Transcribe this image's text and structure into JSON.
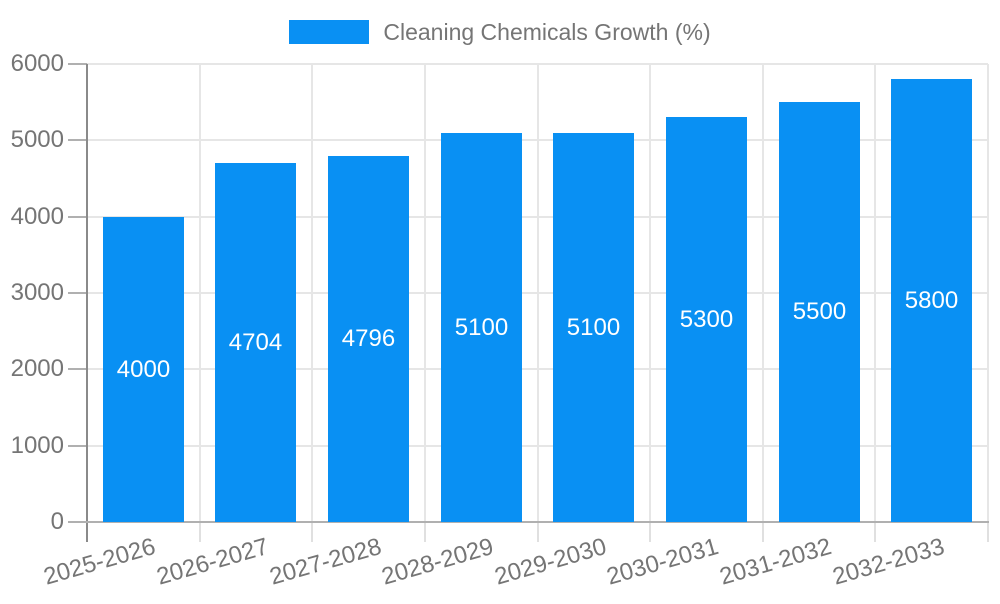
{
  "legend": {
    "label": "Cleaning Chemicals Growth (%)"
  },
  "chart_data": {
    "type": "bar",
    "title": "Cleaning Chemicals Growth (%)",
    "categories": [
      "2025-2026",
      "2026-2027",
      "2027-2028",
      "2028-2029",
      "2029-2030",
      "2030-2031",
      "2031-2032",
      "2032-2033"
    ],
    "values": [
      4000,
      4704,
      4796,
      5100,
      5100,
      5300,
      5500,
      5800
    ],
    "bar_labels": [
      "4000",
      "4704",
      "4796",
      "5100",
      "5100",
      "5300",
      "5500",
      "5800"
    ],
    "xlabel": "",
    "ylabel": "",
    "ylim": [
      0,
      6000
    ],
    "yticks": [
      0,
      1000,
      2000,
      3000,
      4000,
      5000,
      6000
    ],
    "ytick_labels": [
      "0",
      "1000",
      "2000",
      "3000",
      "4000",
      "5000",
      "6000"
    ],
    "grid": true,
    "legend_position": "top",
    "x_label_rotation_deg": -16,
    "colors": {
      "bar": "#0990f3",
      "bar_label": "#ffffff",
      "axis_text": "#757575",
      "grid": "#e6e6e6",
      "y_axis_line": "#8a8a8a",
      "baseline": "#b0b0b0",
      "x_tick": "#e0e0e0",
      "y_tick": "#b0b0b0"
    }
  }
}
